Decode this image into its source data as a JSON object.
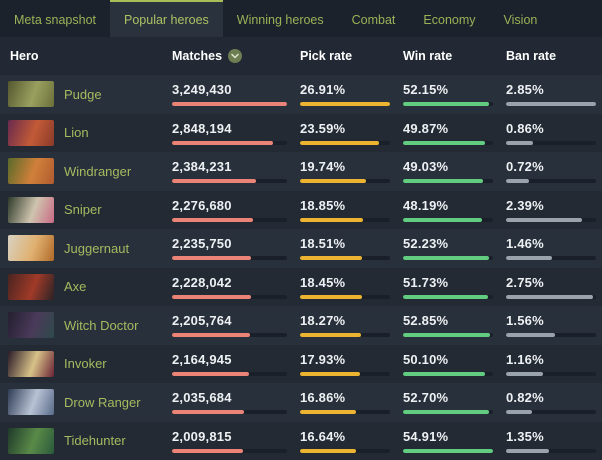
{
  "tabs": [
    {
      "label": "Meta snapshot",
      "active": false
    },
    {
      "label": "Popular heroes",
      "active": true
    },
    {
      "label": "Winning heroes",
      "active": false
    },
    {
      "label": "Combat",
      "active": false
    },
    {
      "label": "Economy",
      "active": false
    },
    {
      "label": "Vision",
      "active": false
    }
  ],
  "table": {
    "columns": [
      "Hero",
      "Matches",
      "Pick rate",
      "Win rate",
      "Ban rate"
    ],
    "sort": {
      "column": "Matches",
      "direction": "descending",
      "icon": "chevron-down-circle-icon"
    },
    "rows": [
      {
        "hero": "Pudge",
        "portrait": [
          "#55582f",
          "#9aa05f",
          "#6b6f3a"
        ],
        "matches": {
          "text": "3,249,430",
          "pct": 100
        },
        "pick": {
          "text": "26.91%",
          "pct": 100
        },
        "win": {
          "text": "52.15%",
          "pct": 95.0
        },
        "ban": {
          "text": "2.85%",
          "pct": 100
        }
      },
      {
        "hero": "Lion",
        "portrait": [
          "#6a2a4e",
          "#c25a36",
          "#8a3a2a"
        ],
        "matches": {
          "text": "2,848,194",
          "pct": 87.7
        },
        "pick": {
          "text": "23.59%",
          "pct": 87.7
        },
        "win": {
          "text": "49.87%",
          "pct": 90.8
        },
        "ban": {
          "text": "0.86%",
          "pct": 30.2
        }
      },
      {
        "hero": "Windranger",
        "portrait": [
          "#5a6a2a",
          "#d0803a",
          "#b05a30"
        ],
        "matches": {
          "text": "2,384,231",
          "pct": 73.4
        },
        "pick": {
          "text": "19.74%",
          "pct": 73.4
        },
        "win": {
          "text": "49.03%",
          "pct": 89.3
        },
        "ban": {
          "text": "0.72%",
          "pct": 25.3
        }
      },
      {
        "hero": "Sniper",
        "portrait": [
          "#2e3a2a",
          "#cfc4ae",
          "#c96a85"
        ],
        "matches": {
          "text": "2,276,680",
          "pct": 70.1
        },
        "pick": {
          "text": "18.85%",
          "pct": 70.1
        },
        "win": {
          "text": "48.19%",
          "pct": 87.8
        },
        "ban": {
          "text": "2.39%",
          "pct": 83.9
        }
      },
      {
        "hero": "Juggernaut",
        "portrait": [
          "#d8d2c2",
          "#e0b070",
          "#b06a28"
        ],
        "matches": {
          "text": "2,235,750",
          "pct": 68.8
        },
        "pick": {
          "text": "18.51%",
          "pct": 68.8
        },
        "win": {
          "text": "52.23%",
          "pct": 95.1
        },
        "ban": {
          "text": "1.46%",
          "pct": 51.2
        }
      },
      {
        "hero": "Axe",
        "portrait": [
          "#4a2420",
          "#a03a28",
          "#2a2226"
        ],
        "matches": {
          "text": "2,228,042",
          "pct": 68.6
        },
        "pick": {
          "text": "18.45%",
          "pct": 68.6
        },
        "win": {
          "text": "51.73%",
          "pct": 94.2
        },
        "ban": {
          "text": "2.75%",
          "pct": 96.5
        }
      },
      {
        "hero": "Witch Doctor",
        "portrait": [
          "#241f30",
          "#4a3a5a",
          "#2e4a4a"
        ],
        "matches": {
          "text": "2,205,764",
          "pct": 67.9
        },
        "pick": {
          "text": "18.27%",
          "pct": 67.9
        },
        "win": {
          "text": "52.85%",
          "pct": 96.2
        },
        "ban": {
          "text": "1.56%",
          "pct": 54.7
        }
      },
      {
        "hero": "Invoker",
        "portrait": [
          "#2a1a28",
          "#d8c288",
          "#6a2235"
        ],
        "matches": {
          "text": "2,164,945",
          "pct": 66.6
        },
        "pick": {
          "text": "17.93%",
          "pct": 66.6
        },
        "win": {
          "text": "50.10%",
          "pct": 91.2
        },
        "ban": {
          "text": "1.16%",
          "pct": 40.7
        }
      },
      {
        "hero": "Drow Ranger",
        "portrait": [
          "#2e3c55",
          "#b8c2d4",
          "#5a6c8a"
        ],
        "matches": {
          "text": "2,035,684",
          "pct": 62.6
        },
        "pick": {
          "text": "16.86%",
          "pct": 62.6
        },
        "win": {
          "text": "52.70%",
          "pct": 96.0
        },
        "ban": {
          "text": "0.82%",
          "pct": 28.8
        }
      },
      {
        "hero": "Tidehunter",
        "portrait": [
          "#1f3a2a",
          "#5a8a48",
          "#2a5a3a"
        ],
        "matches": {
          "text": "2,009,815",
          "pct": 61.9
        },
        "pick": {
          "text": "16.64%",
          "pct": 61.9
        },
        "win": {
          "text": "54.91%",
          "pct": 100
        },
        "ban": {
          "text": "1.35%",
          "pct": 47.4
        }
      }
    ]
  },
  "colors": {
    "matches_bar": "#ec8377",
    "pick_bar": "#ecb431",
    "win_bar": "#62cd80",
    "ban_bar": "#9aa2ac",
    "track": "#1a2029",
    "accent_green": "#a9bd58",
    "hero_link": "#a6ba5f",
    "tabbar_bg": "#1b222c",
    "row_odd_bg": "#28303b",
    "row_even_bg": "#232a34"
  }
}
